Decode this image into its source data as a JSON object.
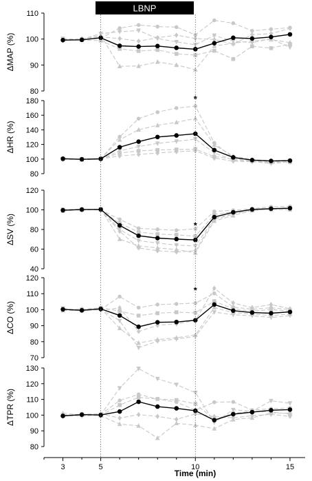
{
  "banner": {
    "label": "LBNP"
  },
  "x_axis": {
    "label": "Time (min)",
    "ticks": [
      3,
      5,
      10,
      15
    ],
    "range": [
      2,
      15.8
    ]
  },
  "colors": {
    "mean": "#000000",
    "individual": "#c8c8c8",
    "banner": "#000000",
    "banner_text": "#ffffff",
    "vline": "#666666"
  },
  "lbnp_window": [
    5,
    10
  ],
  "chart_data": [
    {
      "type": "line",
      "ylabel": "ΔMAP (%)",
      "yticks": [
        80,
        90,
        100,
        110
      ],
      "ylim": [
        80,
        110
      ],
      "x": [
        3,
        4,
        5,
        6,
        7,
        8,
        9,
        10,
        11,
        12,
        13,
        14,
        15
      ],
      "series": [
        {
          "role": "mean",
          "values": [
            99.6,
            99.7,
            100.5,
            97.4,
            97.1,
            97.3,
            96.6,
            96.1,
            98.4,
            100.5,
            100.2,
            100.8,
            101.8
          ]
        },
        {
          "role": "individual",
          "marker": "circle",
          "values": [
            99.5,
            99.8,
            100.3,
            104.2,
            105.4,
            104.8,
            104.6,
            101.6,
            107.2,
            106.1,
            103.2,
            103.8,
            104.4
          ]
        },
        {
          "role": "individual",
          "marker": "square",
          "values": [
            100.2,
            99.6,
            99.4,
            96.2,
            95.4,
            95.8,
            94.3,
            93.8,
            95.5,
            92.3,
            97.2,
            96.5,
            98.1
          ]
        },
        {
          "role": "individual",
          "marker": "triangle",
          "values": [
            99.8,
            100.1,
            101.4,
            89.5,
            89.6,
            91.2,
            90.0,
            88.2,
            97.3,
            98.4,
            99.3,
            99.8,
            98.6
          ]
        },
        {
          "role": "individual",
          "marker": "triangle-down",
          "values": [
            100.1,
            99.9,
            102.1,
            102.8,
            103.3,
            100.2,
            98.9,
            97.8,
            101.4,
            99.2,
            98.6,
            100.1,
            96.8
          ]
        },
        {
          "role": "individual",
          "marker": "diamond",
          "values": [
            99.4,
            100.2,
            100.8,
            100.2,
            99.2,
            100.5,
            101.5,
            100.2,
            99.8,
            98.1,
            101.7,
            102.1,
            104.1
          ]
        }
      ],
      "annotations": []
    },
    {
      "type": "line",
      "ylabel": "ΔHR (%)",
      "yticks": [
        80,
        100,
        120,
        140,
        160,
        180
      ],
      "ylim": [
        80,
        180
      ],
      "x": [
        3,
        4,
        5,
        6,
        7,
        8,
        9,
        10,
        11,
        12,
        13,
        14,
        15
      ],
      "series": [
        {
          "role": "mean",
          "values": [
            100.5,
            99.6,
            100.3,
            116.2,
            123.8,
            130.2,
            132.3,
            134.6,
            112.3,
            102.3,
            98.6,
            97.4,
            97.8
          ]
        },
        {
          "role": "individual",
          "marker": "circle",
          "values": [
            100.3,
            99.5,
            100.1,
            130.5,
            155.3,
            164.2,
            169.8,
            172.4,
            122.1,
            101.5,
            98.1,
            96.3,
            97.1
          ]
        },
        {
          "role": "individual",
          "marker": "square",
          "values": [
            99.7,
            99.8,
            100.2,
            108.1,
            111.2,
            112.4,
            113.1,
            113.6,
            103.3,
            100.1,
            97.2,
            95.4,
            95.8
          ]
        },
        {
          "role": "individual",
          "marker": "triangle",
          "values": [
            100.8,
            99.2,
            100.5,
            126.4,
            140.1,
            146.2,
            150.3,
            155.6,
            119.2,
            104.1,
            99.2,
            97.8,
            98.3
          ]
        },
        {
          "role": "individual",
          "marker": "triangle-down",
          "values": [
            100.1,
            99.8,
            99.7,
            111.3,
            117.1,
            121.4,
            124.2,
            127.3,
            108.5,
            98.6,
            96.6,
            93.8,
            96.1
          ]
        },
        {
          "role": "individual",
          "marker": "diamond",
          "values": [
            99.2,
            100.1,
            100.4,
            104.2,
            106.3,
            108.2,
            110.1,
            111.3,
            101.2,
            97.1,
            96.3,
            95.2,
            95.9
          ]
        }
      ],
      "annotations": [
        {
          "text": "*",
          "x": 10,
          "y": 182
        }
      ]
    },
    {
      "type": "line",
      "ylabel": "ΔSV (%)",
      "yticks": [
        40,
        60,
        80,
        100,
        120
      ],
      "ylim": [
        40,
        120
      ],
      "x": [
        3,
        4,
        5,
        6,
        7,
        8,
        9,
        10,
        11,
        12,
        13,
        14,
        15
      ],
      "series": [
        {
          "role": "mean",
          "values": [
            99.6,
            100.3,
            100.4,
            84.2,
            73.6,
            71.2,
            70.2,
            69.3,
            92.6,
            97.5,
            100.4,
            101.2,
            101.6
          ]
        },
        {
          "role": "individual",
          "marker": "circle",
          "values": [
            100.2,
            100.8,
            100.1,
            90.3,
            81.2,
            80.1,
            79.2,
            80.6,
            98.4,
            99.6,
            101.2,
            103.1,
            103.5
          ]
        },
        {
          "role": "individual",
          "marker": "square",
          "values": [
            99.5,
            100.1,
            100.2,
            86.4,
            77.3,
            75.2,
            74.6,
            73.2,
            95.1,
            98.1,
            100.1,
            101.3,
            102.1
          ]
        },
        {
          "role": "individual",
          "marker": "triangle",
          "values": [
            98.8,
            100.3,
            100.6,
            70.2,
            63.4,
            61.2,
            59.6,
            56.3,
            88.6,
            94.2,
            99.3,
            100.4,
            100.1
          ]
        },
        {
          "role": "individual",
          "marker": "triangle-down",
          "values": [
            100.4,
            99.6,
            100.7,
            80.1,
            68.6,
            66.2,
            64.1,
            63.2,
            91.3,
            96.4,
            99.6,
            101.6,
            100.8
          ]
        },
        {
          "role": "individual",
          "marker": "diamond",
          "values": [
            99.9,
            100.5,
            99.8,
            78.2,
            61.2,
            58.3,
            57.1,
            58.4,
            90.2,
            95.6,
            100.2,
            100.3,
            102.2
          ]
        }
      ],
      "annotations": [
        {
          "text": "*",
          "x": 10,
          "y": 84
        }
      ]
    },
    {
      "type": "line",
      "ylabel": "ΔCO (%)",
      "yticks": [
        70,
        80,
        90,
        100,
        110,
        120
      ],
      "ylim": [
        70,
        120
      ],
      "x": [
        3,
        4,
        5,
        6,
        7,
        8,
        9,
        10,
        11,
        12,
        13,
        14,
        15
      ],
      "series": [
        {
          "role": "mean",
          "values": [
            100.2,
            99.6,
            100.5,
            96.4,
            89.3,
            92.1,
            92.3,
            93.4,
            103.2,
            99.4,
            98.2,
            97.8,
            98.6
          ]
        },
        {
          "role": "individual",
          "marker": "circle",
          "values": [
            100.5,
            99.8,
            100.1,
            108.2,
            101.3,
            103.2,
            103.6,
            104.1,
            110.2,
            101.6,
            100.3,
            101.2,
            100.1
          ]
        },
        {
          "role": "individual",
          "marker": "square",
          "values": [
            99.8,
            100.2,
            101.2,
            99.2,
            96.3,
            97.8,
            98.4,
            98.1,
            105.3,
            100.6,
            99.1,
            100.1,
            99.2
          ]
        },
        {
          "role": "individual",
          "marker": "triangle",
          "values": [
            99.5,
            99.6,
            100.8,
            88.4,
            79.2,
            81.3,
            82.4,
            84.2,
            101.4,
            98.1,
            97.3,
            96.4,
            97.2
          ]
        },
        {
          "role": "individual",
          "marker": "triangle-down",
          "values": [
            100.9,
            99.1,
            100.3,
            93.1,
            76.2,
            80.3,
            81.6,
            83.3,
            98.5,
            96.8,
            96.2,
            95.1,
            96.3
          ]
        },
        {
          "role": "individual",
          "marker": "diamond",
          "values": [
            100.1,
            100.4,
            99.6,
            101.2,
            86.4,
            90.2,
            91.1,
            93.2,
            113.4,
            104.2,
            101.3,
            103.2,
            100.6
          ]
        }
      ],
      "annotations": [
        {
          "text": "*",
          "x": 10,
          "y": 112
        }
      ]
    },
    {
      "type": "line",
      "ylabel": "ΔTPR (%)",
      "yticks": [
        80,
        90,
        100,
        110,
        120,
        130
      ],
      "ylim": [
        80,
        130
      ],
      "x": [
        3,
        4,
        5,
        6,
        7,
        8,
        9,
        10,
        11,
        12,
        13,
        14,
        15
      ],
      "series": [
        {
          "role": "mean",
          "values": [
            99.5,
            100.3,
            100.1,
            102.3,
            108.5,
            105.4,
            104.3,
            102.8,
            96.8,
            100.6,
            101.9,
            103.1,
            103.5
          ]
        },
        {
          "role": "individual",
          "marker": "circle",
          "values": [
            100.2,
            99.8,
            100.4,
            109.3,
            113.2,
            110.2,
            108.3,
            103.1,
            108.2,
            108.4,
            103.2,
            104.1,
            104.6
          ]
        },
        {
          "role": "individual",
          "marker": "square",
          "values": [
            99.6,
            100.5,
            99.8,
            106.4,
            111.3,
            110.3,
            109.6,
            107.2,
            97.3,
            101.2,
            102.3,
            102.1,
            100.6
          ]
        },
        {
          "role": "individual",
          "marker": "triangle",
          "values": [
            101.2,
            100.1,
            99.6,
            94.3,
            93.2,
            85.4,
            94.8,
            93.6,
            91.4,
            97.2,
            98.3,
            101.4,
            101.2
          ]
        },
        {
          "role": "individual",
          "marker": "triangle-down",
          "values": [
            100.1,
            99.3,
            100.2,
            117.2,
            129.6,
            123.1,
            119.4,
            114.3,
            95.3,
            103.4,
            102.4,
            109.1,
            107.6
          ]
        },
        {
          "role": "individual",
          "marker": "diamond",
          "values": [
            99.3,
            100.6,
            100.8,
            98.1,
            100.3,
            99.2,
            97.3,
            100.8,
            99.1,
            98.3,
            99.6,
            100.5,
            99.2
          ]
        }
      ],
      "annotations": []
    }
  ]
}
